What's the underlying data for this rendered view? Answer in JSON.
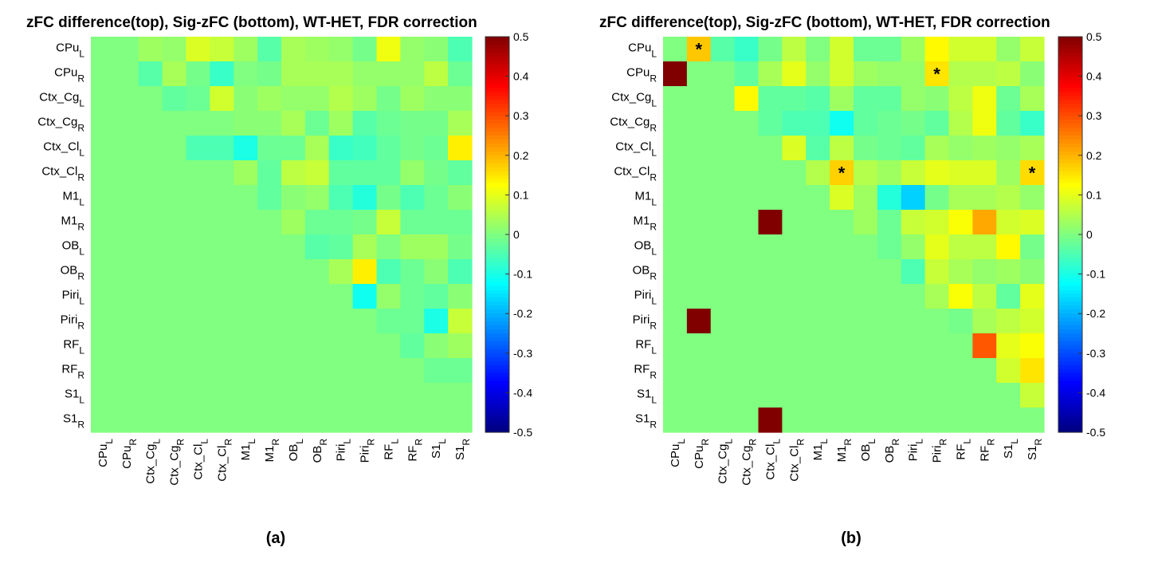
{
  "chart_data": [
    {
      "type": "heatmap",
      "title": "zFC difference(top), Sig-zFC (bottom), WT-HET, FDR correction",
      "caption": "(a)",
      "rows": [
        [
          "CPu",
          "L"
        ],
        [
          "CPu",
          "R"
        ],
        [
          "Ctx_Cg",
          "L"
        ],
        [
          "Ctx_Cg",
          "R"
        ],
        [
          "Ctx_Cl",
          "L"
        ],
        [
          "Ctx_Cl",
          "R"
        ],
        [
          "M1",
          "L"
        ],
        [
          "M1",
          "R"
        ],
        [
          "OB",
          "L"
        ],
        [
          "OB",
          "R"
        ],
        [
          "Piri",
          "L"
        ],
        [
          "Piri",
          "R"
        ],
        [
          "RF",
          "L"
        ],
        [
          "RF",
          "R"
        ],
        [
          "S1",
          "L"
        ],
        [
          "S1",
          "R"
        ]
      ],
      "cols": [
        [
          "CPu",
          "L"
        ],
        [
          "CPu",
          "R"
        ],
        [
          "Ctx_Cg",
          "L"
        ],
        [
          "Ctx_Cg",
          "R"
        ],
        [
          "Ctx_Cl",
          "L"
        ],
        [
          "Ctx_Cl",
          "R"
        ],
        [
          "M1",
          "L"
        ],
        [
          "M1",
          "R"
        ],
        [
          "OB",
          "L"
        ],
        [
          "OB",
          "R"
        ],
        [
          "Piri",
          "L"
        ],
        [
          "Piri",
          "R"
        ],
        [
          "RF",
          "L"
        ],
        [
          "RF",
          "R"
        ],
        [
          "S1",
          "L"
        ],
        [
          "S1",
          "R"
        ]
      ],
      "colorbar": {
        "colormap": "jet",
        "range": [
          -0.5,
          0.5
        ],
        "ticks": [
          "0.5",
          "0.4",
          "0.3",
          "0.2",
          "0.1",
          "0",
          "-0.1",
          "-0.2",
          "-0.3",
          "-0.4",
          "-0.5"
        ]
      },
      "values": [
        [
          0,
          0,
          0.03,
          0.02,
          0.09,
          0.07,
          0.03,
          -0.04,
          0.04,
          0.03,
          0.02,
          -0.01,
          0.11,
          0.02,
          0.01,
          -0.05
        ],
        [
          0,
          0,
          -0.04,
          0.04,
          -0.01,
          -0.07,
          0.0,
          -0.01,
          0.04,
          0.04,
          0.04,
          0.02,
          0.02,
          0.02,
          0.06,
          -0.02
        ],
        [
          0,
          0,
          0,
          -0.03,
          -0.02,
          0.08,
          0.01,
          0.03,
          0.02,
          0.02,
          0.05,
          0.03,
          -0.01,
          0.03,
          0.01,
          0.01
        ],
        [
          0,
          0,
          0,
          0,
          0.0,
          0.0,
          0.01,
          0.01,
          0.04,
          -0.02,
          0.03,
          -0.04,
          -0.02,
          -0.01,
          -0.01,
          0.04
        ],
        [
          0,
          0,
          0,
          0,
          -0.05,
          -0.05,
          -0.1,
          -0.02,
          -0.02,
          0.04,
          -0.07,
          -0.06,
          -0.03,
          -0.01,
          -0.02,
          0.14
        ],
        [
          0,
          0,
          0,
          0,
          0,
          0,
          0.03,
          -0.03,
          0.06,
          0.07,
          -0.03,
          -0.03,
          -0.03,
          0.02,
          -0.01,
          -0.03
        ],
        [
          0,
          0,
          0,
          0,
          0,
          0,
          0,
          -0.03,
          0.01,
          0.02,
          -0.05,
          -0.09,
          -0.01,
          -0.05,
          -0.02,
          0.01
        ],
        [
          0,
          0,
          0,
          0,
          0,
          0,
          0,
          0,
          0.03,
          -0.02,
          -0.02,
          -0.01,
          0.07,
          -0.02,
          -0.02,
          -0.02
        ],
        [
          0,
          0,
          0,
          0,
          0,
          0,
          0,
          0,
          0,
          -0.04,
          -0.03,
          0.04,
          0.0,
          0.03,
          0.03,
          -0.01
        ],
        [
          0,
          0,
          0,
          0,
          0,
          0,
          0,
          0,
          0,
          0,
          0.04,
          0.14,
          -0.05,
          -0.02,
          0.01,
          -0.05
        ],
        [
          0,
          0,
          0,
          0,
          0,
          0,
          0,
          0,
          0,
          0,
          0,
          -0.11,
          0.02,
          -0.02,
          -0.03,
          0.01
        ],
        [
          0,
          0,
          0,
          0,
          0,
          0,
          0,
          0,
          0,
          0,
          0,
          0,
          -0.02,
          -0.02,
          -0.1,
          0.07
        ],
        [
          0,
          0,
          0,
          0,
          0,
          0,
          0,
          0,
          0,
          0,
          0,
          0,
          0,
          -0.03,
          0.01,
          0.03
        ],
        [
          0,
          0,
          0,
          0,
          0,
          0,
          0,
          0,
          0,
          0,
          0,
          0,
          0,
          0,
          -0.02,
          -0.02
        ],
        [
          0,
          0,
          0,
          0,
          0,
          0,
          0,
          0,
          0,
          0,
          0,
          0,
          0,
          0,
          0,
          0
        ],
        [
          0,
          0,
          0,
          0,
          0,
          0,
          0,
          0,
          0,
          0,
          0,
          0,
          0,
          0,
          0,
          0
        ]
      ],
      "significant": []
    },
    {
      "type": "heatmap",
      "title": "zFC difference(top), Sig-zFC (bottom), WT-HET, FDR correction",
      "caption": "(b)",
      "rows": [
        [
          "CPu",
          "L"
        ],
        [
          "CPu",
          "R"
        ],
        [
          "Ctx_Cg",
          "L"
        ],
        [
          "Ctx_Cg",
          "R"
        ],
        [
          "Ctx_Cl",
          "L"
        ],
        [
          "Ctx_Cl",
          "R"
        ],
        [
          "M1",
          "L"
        ],
        [
          "M1",
          "R"
        ],
        [
          "OB",
          "L"
        ],
        [
          "OB",
          "R"
        ],
        [
          "Piri",
          "L"
        ],
        [
          "Piri",
          "R"
        ],
        [
          "RF",
          "L"
        ],
        [
          "RF",
          "R"
        ],
        [
          "S1",
          "L"
        ],
        [
          "S1",
          "R"
        ]
      ],
      "cols": [
        [
          "CPu",
          "L"
        ],
        [
          "CPu",
          "R"
        ],
        [
          "Ctx_Cg",
          "L"
        ],
        [
          "Ctx_Cg",
          "R"
        ],
        [
          "Ctx_Cl",
          "L"
        ],
        [
          "Ctx_Cl",
          "R"
        ],
        [
          "M1",
          "L"
        ],
        [
          "M1",
          "R"
        ],
        [
          "OB",
          "L"
        ],
        [
          "OB",
          "R"
        ],
        [
          "Piri",
          "L"
        ],
        [
          "Piri",
          "R"
        ],
        [
          "RF",
          "L"
        ],
        [
          "RF",
          "R"
        ],
        [
          "S1",
          "L"
        ],
        [
          "S1",
          "R"
        ]
      ],
      "colorbar": {
        "colormap": "jet",
        "range": [
          -0.5,
          0.5
        ],
        "ticks": [
          "0.5",
          "0.4",
          "0.3",
          "0.2",
          "0.1",
          "0",
          "-0.1",
          "-0.2",
          "-0.3",
          "-0.4",
          "-0.5"
        ]
      },
      "values": [
        [
          0,
          0.18,
          -0.04,
          -0.07,
          -0.01,
          0.06,
          0.0,
          0.08,
          -0.02,
          -0.02,
          0.03,
          0.13,
          0.08,
          0.08,
          0.02,
          0.07
        ],
        [
          0.5,
          0,
          0.0,
          -0.03,
          0.04,
          0.1,
          0.02,
          0.08,
          0.03,
          0.02,
          0.02,
          0.15,
          0.05,
          0.05,
          0.06,
          0.01
        ],
        [
          0,
          0,
          0,
          0.13,
          -0.03,
          -0.03,
          -0.04,
          0.03,
          -0.03,
          -0.03,
          0.02,
          0.01,
          0.06,
          0.11,
          -0.02,
          0.04
        ],
        [
          0,
          0,
          0,
          0,
          -0.03,
          -0.05,
          -0.05,
          -0.11,
          -0.03,
          -0.02,
          -0.01,
          -0.03,
          0.05,
          0.11,
          -0.03,
          -0.07
        ],
        [
          0,
          0,
          0,
          0,
          0,
          0.09,
          -0.04,
          0.06,
          -0.01,
          -0.02,
          -0.03,
          0.04,
          0.02,
          0.03,
          0.02,
          0.04
        ],
        [
          0,
          0,
          0,
          0,
          0,
          0,
          0.05,
          0.17,
          0.05,
          0.03,
          0.07,
          0.1,
          0.09,
          0.09,
          0.03,
          0.16
        ],
        [
          0,
          0,
          0,
          0,
          0,
          0,
          0,
          0.09,
          0.03,
          -0.09,
          -0.17,
          -0.01,
          0.04,
          0.04,
          0.05,
          0.02
        ],
        [
          0,
          0,
          0,
          0,
          0.5,
          0,
          0,
          0,
          0.03,
          -0.02,
          0.07,
          0.08,
          0.12,
          0.21,
          0.08,
          0.09
        ],
        [
          0,
          0,
          0,
          0,
          0,
          0,
          0,
          0,
          0,
          -0.02,
          0.02,
          0.1,
          0.06,
          0.06,
          0.13,
          -0.01
        ],
        [
          0,
          0,
          0,
          0,
          0,
          0,
          0,
          0,
          0,
          0,
          -0.05,
          0.07,
          0.04,
          0.02,
          0.03,
          0.01
        ],
        [
          0,
          0,
          0,
          0,
          0,
          0,
          0,
          0,
          0,
          0,
          0,
          0.04,
          0.12,
          0.06,
          -0.03,
          0.1
        ],
        [
          0,
          0.5,
          0,
          0,
          0,
          0,
          0,
          0,
          0,
          0,
          0,
          0,
          -0.01,
          0.04,
          0.06,
          0.08
        ],
        [
          0,
          0,
          0,
          0,
          0,
          0,
          0,
          0,
          0,
          0,
          0,
          0,
          0,
          0.29,
          0.1,
          0.12
        ],
        [
          0,
          0,
          0,
          0,
          0,
          0,
          0,
          0,
          0,
          0,
          0,
          0,
          0,
          0,
          0.08,
          0.15
        ],
        [
          0,
          0,
          0,
          0,
          0,
          0,
          0,
          0,
          0,
          0,
          0,
          0,
          0,
          0,
          0,
          0.07
        ],
        [
          0,
          0,
          0,
          0,
          0.5,
          0,
          0,
          0,
          0,
          0,
          0,
          0,
          0,
          0,
          0,
          0
        ]
      ],
      "significant": [
        [
          0,
          1
        ],
        [
          1,
          11
        ],
        [
          5,
          7
        ],
        [
          5,
          15
        ]
      ]
    }
  ]
}
